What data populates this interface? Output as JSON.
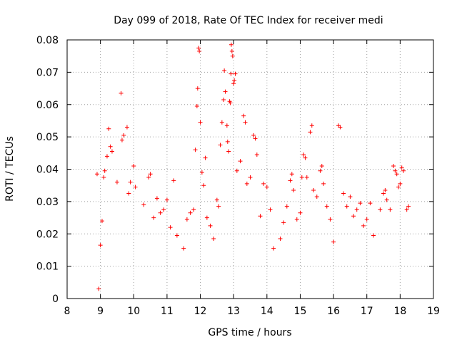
{
  "chart_data": {
    "type": "scatter",
    "title": "Day 099 of 2018, Rate Of TEC Index for receiver medi",
    "xlabel": "GPS time / hours",
    "ylabel": "ROTI / TECUs",
    "xlim": [
      8,
      19
    ],
    "ylim": [
      0,
      0.08
    ],
    "xticks": [
      "8",
      "9",
      "10",
      "11",
      "12",
      "13",
      "14",
      "15",
      "16",
      "17",
      "18",
      "19"
    ],
    "yticks": [
      "0",
      "0.01",
      "0.02",
      "0.03",
      "0.04",
      "0.05",
      "0.06",
      "0.07",
      "0.08"
    ],
    "grid": true,
    "marker": "+",
    "marker_color": "#ff0000",
    "series": [
      {
        "name": "ROTI",
        "points": [
          [
            8.9,
            0.0385
          ],
          [
            8.95,
            0.003
          ],
          [
            9.0,
            0.0165
          ],
          [
            9.05,
            0.024
          ],
          [
            9.1,
            0.0375
          ],
          [
            9.13,
            0.0395
          ],
          [
            9.2,
            0.044
          ],
          [
            9.25,
            0.0525
          ],
          [
            9.3,
            0.047
          ],
          [
            9.35,
            0.0455
          ],
          [
            9.5,
            0.036
          ],
          [
            9.62,
            0.0635
          ],
          [
            9.65,
            0.049
          ],
          [
            9.7,
            0.0505
          ],
          [
            9.8,
            0.053
          ],
          [
            9.85,
            0.0325
          ],
          [
            9.9,
            0.036
          ],
          [
            10.0,
            0.041
          ],
          [
            10.05,
            0.0345
          ],
          [
            10.3,
            0.029
          ],
          [
            10.45,
            0.0375
          ],
          [
            10.5,
            0.0385
          ],
          [
            10.6,
            0.025
          ],
          [
            10.7,
            0.031
          ],
          [
            10.8,
            0.0265
          ],
          [
            10.9,
            0.0275
          ],
          [
            11.0,
            0.0305
          ],
          [
            11.1,
            0.022
          ],
          [
            11.2,
            0.0365
          ],
          [
            11.3,
            0.0195
          ],
          [
            11.5,
            0.0155
          ],
          [
            11.6,
            0.0245
          ],
          [
            11.7,
            0.0265
          ],
          [
            11.8,
            0.0275
          ],
          [
            11.85,
            0.046
          ],
          [
            11.9,
            0.0595
          ],
          [
            11.92,
            0.065
          ],
          [
            11.95,
            0.0775
          ],
          [
            11.97,
            0.0765
          ],
          [
            12.0,
            0.0545
          ],
          [
            12.05,
            0.039
          ],
          [
            12.1,
            0.035
          ],
          [
            12.15,
            0.0435
          ],
          [
            12.2,
            0.025
          ],
          [
            12.3,
            0.0225
          ],
          [
            12.4,
            0.0185
          ],
          [
            12.5,
            0.0305
          ],
          [
            12.55,
            0.0285
          ],
          [
            12.6,
            0.0475
          ],
          [
            12.65,
            0.0545
          ],
          [
            12.7,
            0.0615
          ],
          [
            12.72,
            0.0705
          ],
          [
            12.75,
            0.064
          ],
          [
            12.8,
            0.0535
          ],
          [
            12.82,
            0.0485
          ],
          [
            12.85,
            0.0455
          ],
          [
            12.88,
            0.061
          ],
          [
            12.9,
            0.0605
          ],
          [
            12.92,
            0.0695
          ],
          [
            12.93,
            0.0785
          ],
          [
            12.95,
            0.0765
          ],
          [
            12.97,
            0.075
          ],
          [
            13.0,
            0.0665
          ],
          [
            13.02,
            0.0675
          ],
          [
            13.05,
            0.0695
          ],
          [
            13.1,
            0.0395
          ],
          [
            13.2,
            0.0425
          ],
          [
            13.3,
            0.0565
          ],
          [
            13.35,
            0.0545
          ],
          [
            13.4,
            0.0355
          ],
          [
            13.5,
            0.0375
          ],
          [
            13.6,
            0.0505
          ],
          [
            13.65,
            0.0495
          ],
          [
            13.7,
            0.0445
          ],
          [
            13.8,
            0.0255
          ],
          [
            13.9,
            0.0355
          ],
          [
            14.0,
            0.0345
          ],
          [
            14.1,
            0.0275
          ],
          [
            14.2,
            0.0155
          ],
          [
            14.4,
            0.0185
          ],
          [
            14.5,
            0.0235
          ],
          [
            14.6,
            0.0285
          ],
          [
            14.7,
            0.0365
          ],
          [
            14.75,
            0.0385
          ],
          [
            14.8,
            0.0335
          ],
          [
            14.9,
            0.0245
          ],
          [
            15.0,
            0.0265
          ],
          [
            15.05,
            0.0375
          ],
          [
            15.1,
            0.0445
          ],
          [
            15.15,
            0.0435
          ],
          [
            15.2,
            0.0375
          ],
          [
            15.3,
            0.0515
          ],
          [
            15.35,
            0.0535
          ],
          [
            15.4,
            0.0335
          ],
          [
            15.5,
            0.0315
          ],
          [
            15.6,
            0.0395
          ],
          [
            15.65,
            0.041
          ],
          [
            15.7,
            0.0355
          ],
          [
            15.8,
            0.0285
          ],
          [
            15.9,
            0.0245
          ],
          [
            16.0,
            0.0175
          ],
          [
            16.15,
            0.0535
          ],
          [
            16.2,
            0.053
          ],
          [
            16.3,
            0.0325
          ],
          [
            16.4,
            0.0285
          ],
          [
            16.5,
            0.0315
          ],
          [
            16.6,
            0.0255
          ],
          [
            16.7,
            0.0275
          ],
          [
            16.8,
            0.0295
          ],
          [
            16.9,
            0.0225
          ],
          [
            17.0,
            0.0245
          ],
          [
            17.1,
            0.0295
          ],
          [
            17.2,
            0.0195
          ],
          [
            17.4,
            0.0275
          ],
          [
            17.5,
            0.0325
          ],
          [
            17.55,
            0.0335
          ],
          [
            17.6,
            0.0305
          ],
          [
            17.7,
            0.0275
          ],
          [
            17.8,
            0.041
          ],
          [
            17.85,
            0.0395
          ],
          [
            17.9,
            0.0385
          ],
          [
            17.95,
            0.0345
          ],
          [
            18.0,
            0.0355
          ],
          [
            18.05,
            0.0405
          ],
          [
            18.1,
            0.0395
          ],
          [
            18.2,
            0.0275
          ],
          [
            18.25,
            0.0285
          ]
        ]
      }
    ]
  }
}
